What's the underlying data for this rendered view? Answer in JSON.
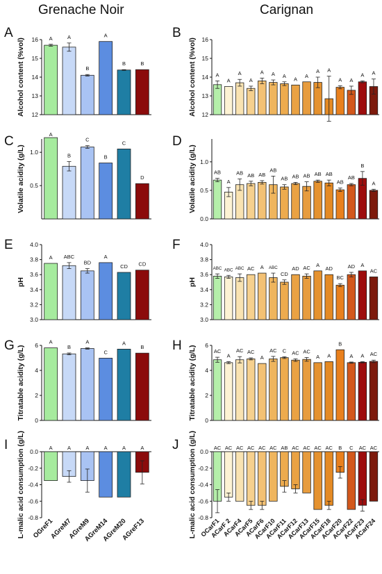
{
  "column_titles": {
    "left": "Grenache Noir",
    "right": "Carignan"
  },
  "panel_letters": [
    "A",
    "B",
    "C",
    "D",
    "E",
    "F",
    "G",
    "H",
    "I",
    "J"
  ],
  "grenache_categories": [
    "OGreF1",
    "AGreM7",
    "AGreM9",
    "AGreM14",
    "AGreM20",
    "AGreF13"
  ],
  "carignan_categories": [
    "OCarF1",
    "ACarF 2",
    "ACarF4",
    "ACarF5",
    "ACarF6",
    "ACarF10",
    "ACarF11",
    "ACarF12",
    "ACarF13",
    "ACarF15",
    "ACarF18",
    "ACarF20",
    "ACarF22",
    "ACarF23",
    "ACarF24"
  ],
  "colors": {
    "grenache": [
      "#a6eb9e",
      "#c7d9f7",
      "#a9c3f3",
      "#5c8de0",
      "#1f7ea4",
      "#8b0b0b"
    ],
    "carignan": [
      "#b5efaa",
      "#fdf3d4",
      "#f9e3b2",
      "#f6d08e",
      "#f3c174",
      "#efb55d",
      "#edab4e",
      "#eaa243",
      "#e79c3e",
      "#e5922f",
      "#e48a24",
      "#e9801d",
      "#d3581c",
      "#9d0d0d",
      "#7d1a0c"
    ]
  },
  "chart_data": [
    {
      "id": "A",
      "type": "bar",
      "ylabel": "Alcohol content (%vol)",
      "ylim": [
        12,
        16
      ],
      "ticks": [
        "12",
        "13",
        "14",
        "15",
        "16"
      ],
      "values": [
        15.7,
        15.6,
        14.1,
        15.9,
        14.38,
        14.4
      ],
      "errors": [
        0.05,
        0.22,
        0.04,
        0,
        0.02,
        0
      ],
      "letters": [
        "A",
        "A",
        "B",
        "A",
        "B",
        "B"
      ]
    },
    {
      "id": "B",
      "type": "bar",
      "ylabel": "Alcohol content (%vol)",
      "ylim": [
        12,
        16
      ],
      "ticks": [
        "12",
        "13",
        "14",
        "15",
        "16"
      ],
      "values": [
        13.6,
        13.5,
        13.7,
        13.4,
        13.8,
        13.72,
        13.65,
        13.58,
        13.75,
        13.72,
        12.85,
        13.46,
        13.3,
        13.75,
        13.5
      ],
      "errors": [
        0.2,
        0,
        0.18,
        0.12,
        0.15,
        0.13,
        0.1,
        0,
        0,
        0.28,
        1.2,
        0.08,
        0.22,
        0.05,
        0.4
      ],
      "letters": [
        "A",
        "A",
        "A",
        "A",
        "A",
        "A",
        "A",
        "A",
        "A",
        "A",
        "A",
        "A",
        "A",
        "A",
        "A"
      ]
    },
    {
      "id": "C",
      "type": "bar",
      "ylabel": "Volatile acidity (g/L)",
      "ylim": [
        0,
        1.2
      ],
      "ticks": [
        "0.5",
        "1.0"
      ],
      "values": [
        1.22,
        0.79,
        1.08,
        0.84,
        1.05,
        0.53
      ],
      "errors": [
        0,
        0.07,
        0.02,
        0,
        0,
        0
      ],
      "letters": [
        "A",
        "B",
        "C",
        "B",
        "C",
        "D"
      ]
    },
    {
      "id": "D",
      "type": "bar",
      "ylabel": "Volatile acidity (g/L)",
      "ylim": [
        0,
        1.4
      ],
      "ticks": [
        "0.0",
        "0.5",
        "1.0"
      ],
      "values": [
        0.68,
        0.47,
        0.6,
        0.62,
        0.64,
        0.6,
        0.56,
        0.62,
        0.57,
        0.66,
        0.63,
        0.51,
        0.6,
        0.71,
        0.5
      ],
      "errors": [
        0.03,
        0.08,
        0.1,
        0.04,
        0.03,
        0.15,
        0.04,
        0.02,
        0.08,
        0.02,
        0.05,
        0.03,
        0.02,
        0.12,
        0.02
      ],
      "letters": [
        "AB",
        "A",
        "AB",
        "AB",
        "AB",
        "AB",
        "AB",
        "AB",
        "AB",
        "AB",
        "AB",
        "AB",
        "AB",
        "B",
        "A"
      ]
    },
    {
      "id": "E",
      "type": "bar",
      "ylabel": "pH",
      "ylim": [
        3.0,
        4.0
      ],
      "ticks": [
        "3.0",
        "3.2",
        "3.4",
        "3.6",
        "3.8",
        "4.0"
      ],
      "values": [
        3.75,
        3.72,
        3.65,
        3.76,
        3.63,
        3.66
      ],
      "errors": [
        0,
        0.04,
        0.03,
        0,
        0,
        0
      ],
      "letters": [
        "A",
        "ABC",
        "BD",
        "A",
        "CD",
        "CD"
      ]
    },
    {
      "id": "F",
      "type": "bar",
      "ylabel": "pH",
      "ylim": [
        3.0,
        4.0
      ],
      "ticks": [
        "3.0",
        "3.2",
        "3.4",
        "3.6",
        "3.8",
        "4.0"
      ],
      "values": [
        3.58,
        3.57,
        3.56,
        3.6,
        3.62,
        3.56,
        3.5,
        3.6,
        3.58,
        3.65,
        3.6,
        3.46,
        3.6,
        3.65,
        3.57
      ],
      "errors": [
        0.03,
        0.02,
        0.05,
        0,
        0,
        0.06,
        0.03,
        0,
        0.03,
        0,
        0,
        0.02,
        0.03,
        0,
        0
      ],
      "letters": [
        "ABC",
        "ABC",
        "ABC",
        "AC",
        "A",
        "ABC",
        "CD",
        "AD",
        "AC",
        "A",
        "AD",
        "BC",
        "AD",
        "A",
        "AC"
      ]
    },
    {
      "id": "G",
      "type": "bar",
      "ylabel": "Titratable acidity (g/L)",
      "ylim": [
        0,
        6
      ],
      "ticks": [
        "0",
        "2",
        "4",
        "6"
      ],
      "values": [
        5.8,
        5.32,
        5.75,
        4.98,
        5.7,
        5.38
      ],
      "errors": [
        0,
        0.07,
        0.05,
        0,
        0,
        0
      ],
      "letters": [
        "A",
        "B",
        "A",
        "C",
        "A",
        "B"
      ]
    },
    {
      "id": "H",
      "type": "bar",
      "ylabel": "Titratable acidity (g/L)",
      "ylim": [
        0,
        6
      ],
      "ticks": [
        "0",
        "2",
        "4",
        "6"
      ],
      "values": [
        4.85,
        4.62,
        4.85,
        4.92,
        4.55,
        4.92,
        5.02,
        4.82,
        4.88,
        4.62,
        4.7,
        5.65,
        4.62,
        4.65,
        4.72
      ],
      "errors": [
        0.2,
        0.08,
        0.25,
        0.08,
        0,
        0.2,
        0.07,
        0.1,
        0.15,
        0,
        0,
        0,
        0.05,
        0.05,
        0.1
      ],
      "letters": [
        "AC",
        "A",
        "AC",
        "AC",
        "A",
        "AC",
        "C",
        "AC",
        "AC",
        "A",
        "A",
        "B",
        "A",
        "A",
        "AC"
      ]
    },
    {
      "id": "I",
      "type": "bar",
      "ylabel": "L-malic acid consumption (g/L)",
      "ylim": [
        -0.8,
        0.0
      ],
      "ticks": [
        "0.0",
        "-0.2",
        "-0.4",
        "-0.6",
        "-0.8"
      ],
      "values": [
        -0.35,
        -0.3,
        -0.35,
        -0.55,
        -0.55,
        -0.25
      ],
      "errors": [
        0,
        0.07,
        0.14,
        0,
        0,
        0.14
      ],
      "letters": [
        "A",
        "A",
        "A",
        "A",
        "A",
        "A"
      ]
    },
    {
      "id": "J",
      "type": "bar",
      "ylabel": "L-malic acid consumption (g/L)",
      "ylim": [
        -0.8,
        0.0
      ],
      "ticks": [
        "0.0",
        "-0.2",
        "-0.4",
        "-0.6",
        "-0.8"
      ],
      "values": [
        -0.6,
        -0.55,
        -0.6,
        -0.65,
        -0.65,
        -0.6,
        -0.42,
        -0.45,
        -0.5,
        -0.7,
        -0.65,
        -0.25,
        -0.7,
        -0.65,
        -0.6
      ],
      "errors": [
        0.14,
        0.05,
        0,
        0.05,
        0.05,
        0,
        0.07,
        0.05,
        0,
        0,
        0.05,
        0.07,
        0,
        0.07,
        0
      ],
      "letters": [
        "AC",
        "AC",
        "AC",
        "AC",
        "AC",
        "AC",
        "AB",
        "AC",
        "AC",
        "AC",
        "AC",
        "B",
        "C",
        "AC",
        "AC"
      ]
    }
  ]
}
